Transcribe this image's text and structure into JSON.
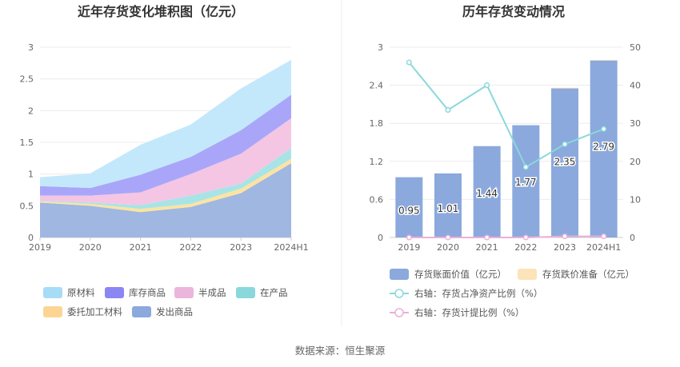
{
  "source_text": "数据来源：恒生聚源",
  "chart_data": [
    {
      "type": "area",
      "stacked": true,
      "title": "近年存货变化堆积图（亿元）",
      "categories": [
        "2019",
        "2020",
        "2021",
        "2022",
        "2023",
        "2024H1"
      ],
      "y_ticks": [
        "0",
        "0.5",
        "1",
        "1.5",
        "2",
        "2.5",
        "3"
      ],
      "ylim": [
        0,
        3
      ],
      "grid": true,
      "legend_position": "bottom",
      "series": [
        {
          "name": "发出商品",
          "color": "#9fb7e1",
          "values": [
            0.55,
            0.5,
            0.4,
            0.48,
            0.7,
            1.17
          ]
        },
        {
          "name": "委托加工材料",
          "color": "#fde3a1",
          "values": [
            0.02,
            0.03,
            0.05,
            0.05,
            0.07,
            0.07
          ]
        },
        {
          "name": "在产品",
          "color": "#a8e4e6",
          "values": [
            0.01,
            0.02,
            0.06,
            0.13,
            0.08,
            0.17
          ]
        },
        {
          "name": "半成品",
          "color": "#f4c6e4",
          "values": [
            0.08,
            0.11,
            0.2,
            0.34,
            0.47,
            0.47
          ]
        },
        {
          "name": "库存商品",
          "color": "#a9a6f9",
          "values": [
            0.15,
            0.12,
            0.28,
            0.27,
            0.37,
            0.37
          ]
        },
        {
          "name": "原材料",
          "color": "#c3e8fb",
          "values": [
            0.14,
            0.23,
            0.47,
            0.51,
            0.66,
            0.55
          ]
        }
      ],
      "legend": [
        {
          "name": "原材料",
          "color": "#a8dcf6"
        },
        {
          "name": "库存商品",
          "color": "#8a86f4"
        },
        {
          "name": "半成品",
          "color": "#ecb5dc"
        },
        {
          "name": "在产品",
          "color": "#8ad8dc"
        },
        {
          "name": "委托加工材料",
          "color": "#fcd595"
        },
        {
          "name": "发出商品",
          "color": "#8ba9dc"
        }
      ]
    },
    {
      "type": "bar+line",
      "title": "历年存货变动情况",
      "categories": [
        "2019",
        "2020",
        "2021",
        "2022",
        "2023",
        "2024H1"
      ],
      "y_left_ticks": [
        "0",
        "0.6",
        "1.2",
        "1.8",
        "2.4",
        "3"
      ],
      "y_left_lim": [
        0,
        3
      ],
      "y_right_ticks": [
        "0",
        "10",
        "20",
        "30",
        "40",
        "50"
      ],
      "y_right_lim": [
        0,
        50
      ],
      "grid": true,
      "legend_position": "bottom",
      "series": [
        {
          "name": "存货账面价值（亿元）",
          "kind": "bar",
          "axis": "left",
          "color": "#8ba9dc",
          "values": [
            0.95,
            1.01,
            1.44,
            1.77,
            2.35,
            2.79
          ],
          "labels": [
            "0.95",
            "1.01",
            "1.44",
            "1.77",
            "2.35",
            "2.79"
          ]
        },
        {
          "name": "存货跌价准备（亿元）",
          "kind": "bar",
          "axis": "left",
          "color": "#fde3b8",
          "values": [
            0,
            0,
            0,
            0,
            0.01,
            0.01
          ]
        },
        {
          "name": "右轴：存货占净资产比例（%）",
          "kind": "line",
          "axis": "right",
          "color": "#8ad8dc",
          "values": [
            46,
            33.5,
            40,
            18.5,
            24.5,
            28.5
          ]
        },
        {
          "name": "右轴：存货计提比例（%）",
          "kind": "line",
          "axis": "right",
          "color": "#eab0d8",
          "values": [
            0,
            0,
            0,
            0,
            0.3,
            0.3
          ]
        }
      ]
    }
  ]
}
